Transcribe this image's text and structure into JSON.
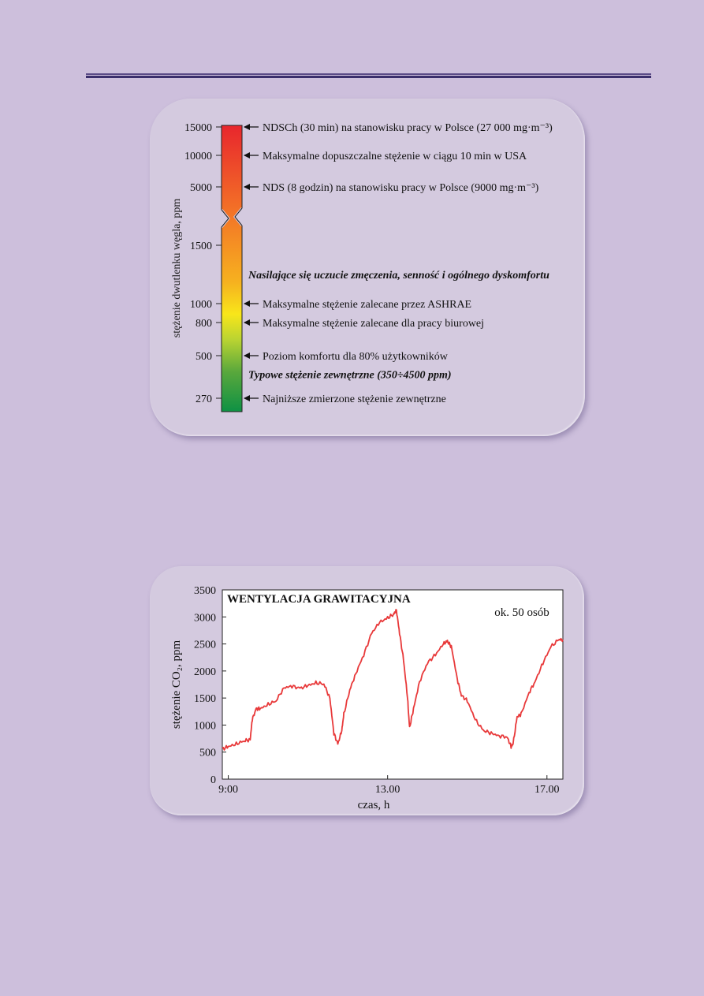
{
  "chart_data": [
    {
      "type": "scale",
      "ylabel": "stężenie dwutlenku węgla, ppm",
      "ticks": [
        15000,
        10000,
        5000,
        1500,
        1000,
        800,
        500,
        270
      ],
      "annotations": [
        {
          "value": 15000,
          "text": "NDSCh (30 min) na stanowisku pracy w Polsce (27 000 mg·m⁻³)",
          "arrow": true
        },
        {
          "value": 10000,
          "text": "Maksymalne dopuszczalne stężenie w ciągu 10 min w USA",
          "arrow": true
        },
        {
          "value": 5000,
          "text": "NDS (8 godzin) na stanowisku pracy w Polsce (9000 mg·m⁻³)",
          "arrow": true
        },
        {
          "value": 1250,
          "text": "Nasilające się uczucie zmęczenia, senność i ogólnego dyskomfortu",
          "arrow": false,
          "emphasis": true
        },
        {
          "value": 1000,
          "text": "Maksymalne stężenie zalecane przez ASHRAE",
          "arrow": true
        },
        {
          "value": 800,
          "text": "Maksymalne stężenie zalecane dla pracy biurowej",
          "arrow": true
        },
        {
          "value": 500,
          "text": "Poziom komfortu dla 80% użytkowników",
          "arrow": true
        },
        {
          "value": 400,
          "text": "Typowe stężenie zewnętrzne (350÷4500 ppm)",
          "arrow": false,
          "emphasis": true
        },
        {
          "value": 270,
          "text": "Najniższe zmierzone stężenie zewnętrzne",
          "arrow": true
        }
      ],
      "colors": {
        "high": "#e8262d",
        "mid": "#f6a21e",
        "yellow": "#f8e61a",
        "low": "#0e9144"
      }
    },
    {
      "type": "line",
      "title": "WENTYLACJA GRAWITACYJNA",
      "annotation": "ok. 50 osób",
      "xlabel": "czas, h",
      "ylabel": "stężenie CO₂, ppm",
      "ylim": [
        0,
        3500
      ],
      "xlim": [
        8.85,
        17.4
      ],
      "xticks": [
        {
          "value": 9,
          "label": "9:00"
        },
        {
          "value": 13,
          "label": "13.00"
        },
        {
          "value": 17,
          "label": "17.00"
        }
      ],
      "yticks": [
        0,
        500,
        1000,
        1500,
        2000,
        2500,
        3000,
        3500
      ],
      "color": "#e8393a",
      "series": [
        {
          "x": [
            8.85,
            9.0,
            9.2,
            9.4,
            9.55,
            9.6,
            9.7,
            9.8,
            10.0,
            10.2,
            10.4,
            10.6,
            10.8,
            11.0,
            11.2,
            11.4,
            11.55,
            11.65,
            11.75,
            11.85,
            11.9,
            12.05,
            12.2,
            12.4,
            12.6,
            12.8,
            13.0,
            13.15,
            13.22,
            13.3,
            13.4,
            13.5,
            13.55,
            13.65,
            13.8,
            14.0,
            14.2,
            14.4,
            14.5,
            14.6,
            14.75,
            14.85,
            15.0,
            15.2,
            15.4,
            15.6,
            15.8,
            16.0,
            16.1,
            16.15,
            16.25,
            16.35,
            16.55,
            16.7,
            16.9,
            17.1,
            17.3,
            17.4
          ],
          "y": [
            560,
            600,
            650,
            710,
            730,
            1100,
            1300,
            1300,
            1380,
            1450,
            1690,
            1720,
            1680,
            1730,
            1780,
            1760,
            1500,
            850,
            650,
            900,
            1200,
            1650,
            1950,
            2300,
            2700,
            2900,
            2980,
            3050,
            3130,
            2700,
            2200,
            1500,
            950,
            1300,
            1800,
            2150,
            2300,
            2500,
            2550,
            2450,
            1850,
            1550,
            1450,
            1100,
            900,
            850,
            800,
            780,
            600,
            650,
            1150,
            1200,
            1600,
            1800,
            2150,
            2450,
            2580,
            2580
          ]
        }
      ]
    }
  ]
}
